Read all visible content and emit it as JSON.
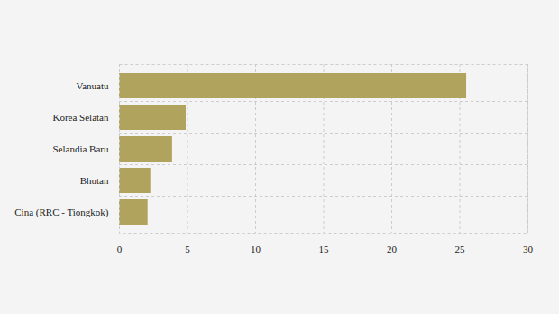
{
  "chart_data": {
    "type": "bar",
    "orientation": "horizontal",
    "categories": [
      "Vanuatu",
      "Korea Selatan",
      "Selandia Baru",
      "Bhutan",
      "Cina (RRC - Tiongkok)"
    ],
    "values": [
      25.5,
      4.9,
      3.9,
      2.3,
      2.1
    ],
    "color": "#b0a35e",
    "xlim": [
      0,
      30
    ],
    "xticks": [
      0,
      5,
      10,
      15,
      20,
      25,
      30
    ],
    "grid": true
  }
}
